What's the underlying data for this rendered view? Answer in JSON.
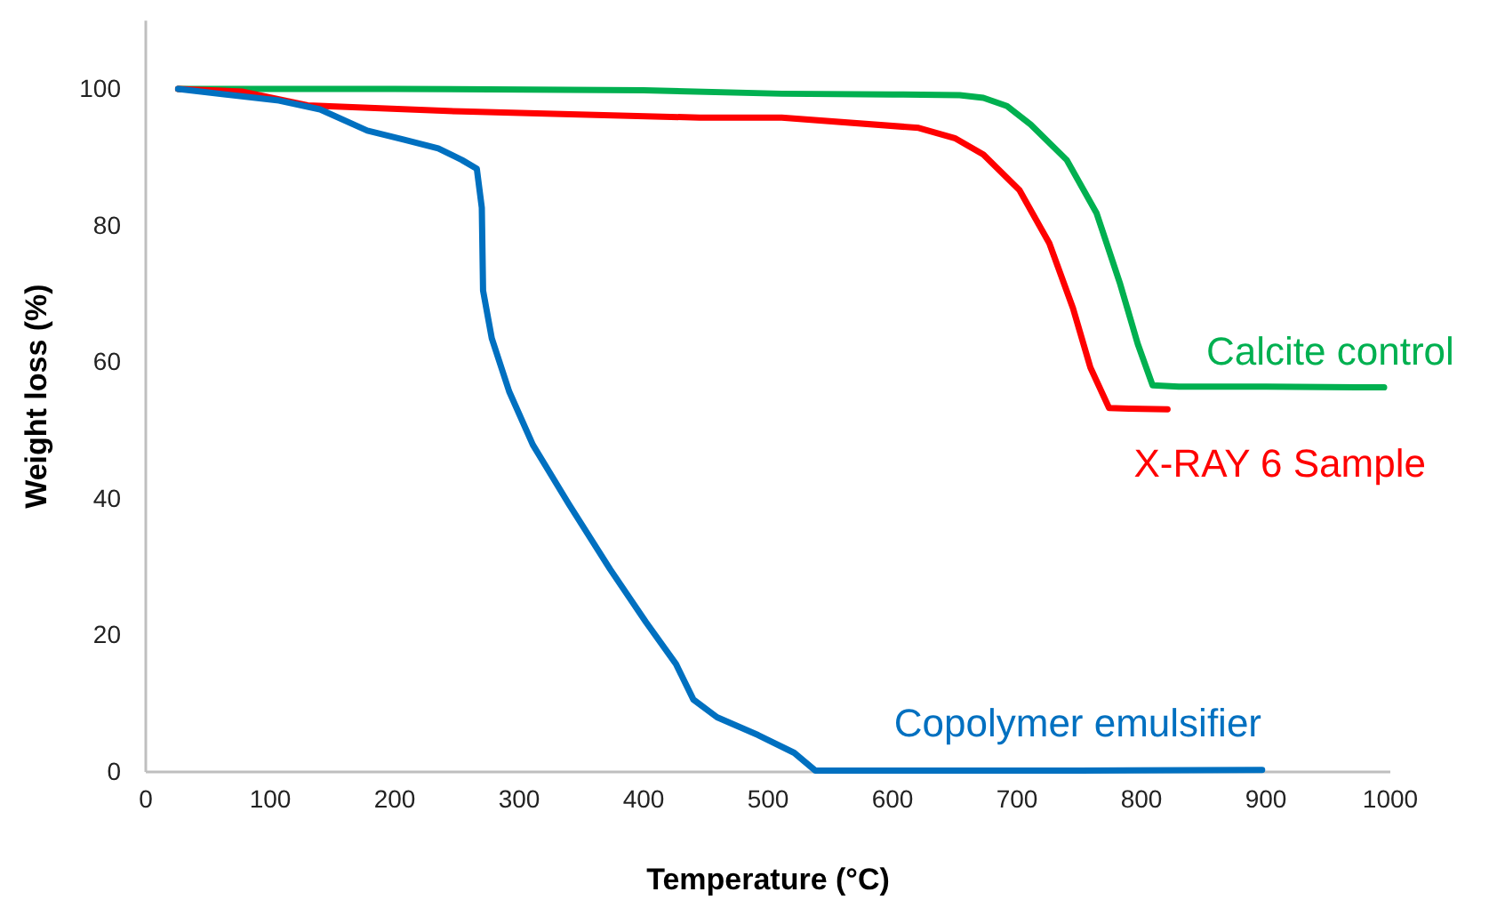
{
  "chart_data": {
    "type": "line",
    "xlabel": "Temperature (°C)",
    "ylabel": "Weight loss (%)",
    "xlim": [
      0,
      1000
    ],
    "ylim": [
      0,
      110
    ],
    "xticks": [
      0,
      100,
      200,
      300,
      400,
      500,
      600,
      700,
      800,
      900,
      1000
    ],
    "yticks": [
      0,
      20,
      40,
      60,
      80,
      100
    ],
    "grid": false,
    "legend": false,
    "marker": "none",
    "line_style": "solid",
    "series": [
      {
        "name": "Calcite control",
        "color": "#00b050",
        "x": [
          26,
          200,
          400,
          511,
          600,
          654,
          673,
          692,
          711,
          740,
          764,
          783,
          797,
          809,
          830,
          900,
          995
        ],
        "values": [
          100,
          100,
          99.8,
          99.3,
          99.2,
          99.1,
          98.7,
          97.5,
          94.8,
          89.6,
          81.8,
          71.4,
          62.7,
          56.6,
          56.4,
          56.4,
          56.3
        ]
      },
      {
        "name": "X-RAY 6 Sample",
        "color": "#ff0000",
        "x": [
          26,
          78,
          130,
          254,
          445,
          511,
          621,
          650,
          673,
          702,
          726,
          745,
          759,
          774,
          790,
          821
        ],
        "values": [
          100,
          99.6,
          97.6,
          96.7,
          95.8,
          95.8,
          94.3,
          92.8,
          90.4,
          85.2,
          77.4,
          67.9,
          59.2,
          53.3,
          53.2,
          53.1
        ]
      },
      {
        "name": "Copolymer emulsifier",
        "color": "#0070c0",
        "x": [
          26,
          107,
          140,
          178,
          207,
          235,
          254,
          266,
          270,
          271,
          278,
          292,
          311,
          340,
          373,
          402,
          426,
          440,
          459,
          492,
          521,
          538,
          600,
          750,
          897
        ],
        "values": [
          100,
          98.3,
          97,
          93.9,
          92.6,
          91.3,
          89.6,
          88.3,
          82.6,
          70.5,
          63.5,
          55.7,
          47.9,
          39.2,
          29.7,
          21.9,
          15.8,
          10.6,
          8,
          5.4,
          2.8,
          0.2,
          0.2,
          0.2,
          0.3
        ]
      }
    ]
  }
}
